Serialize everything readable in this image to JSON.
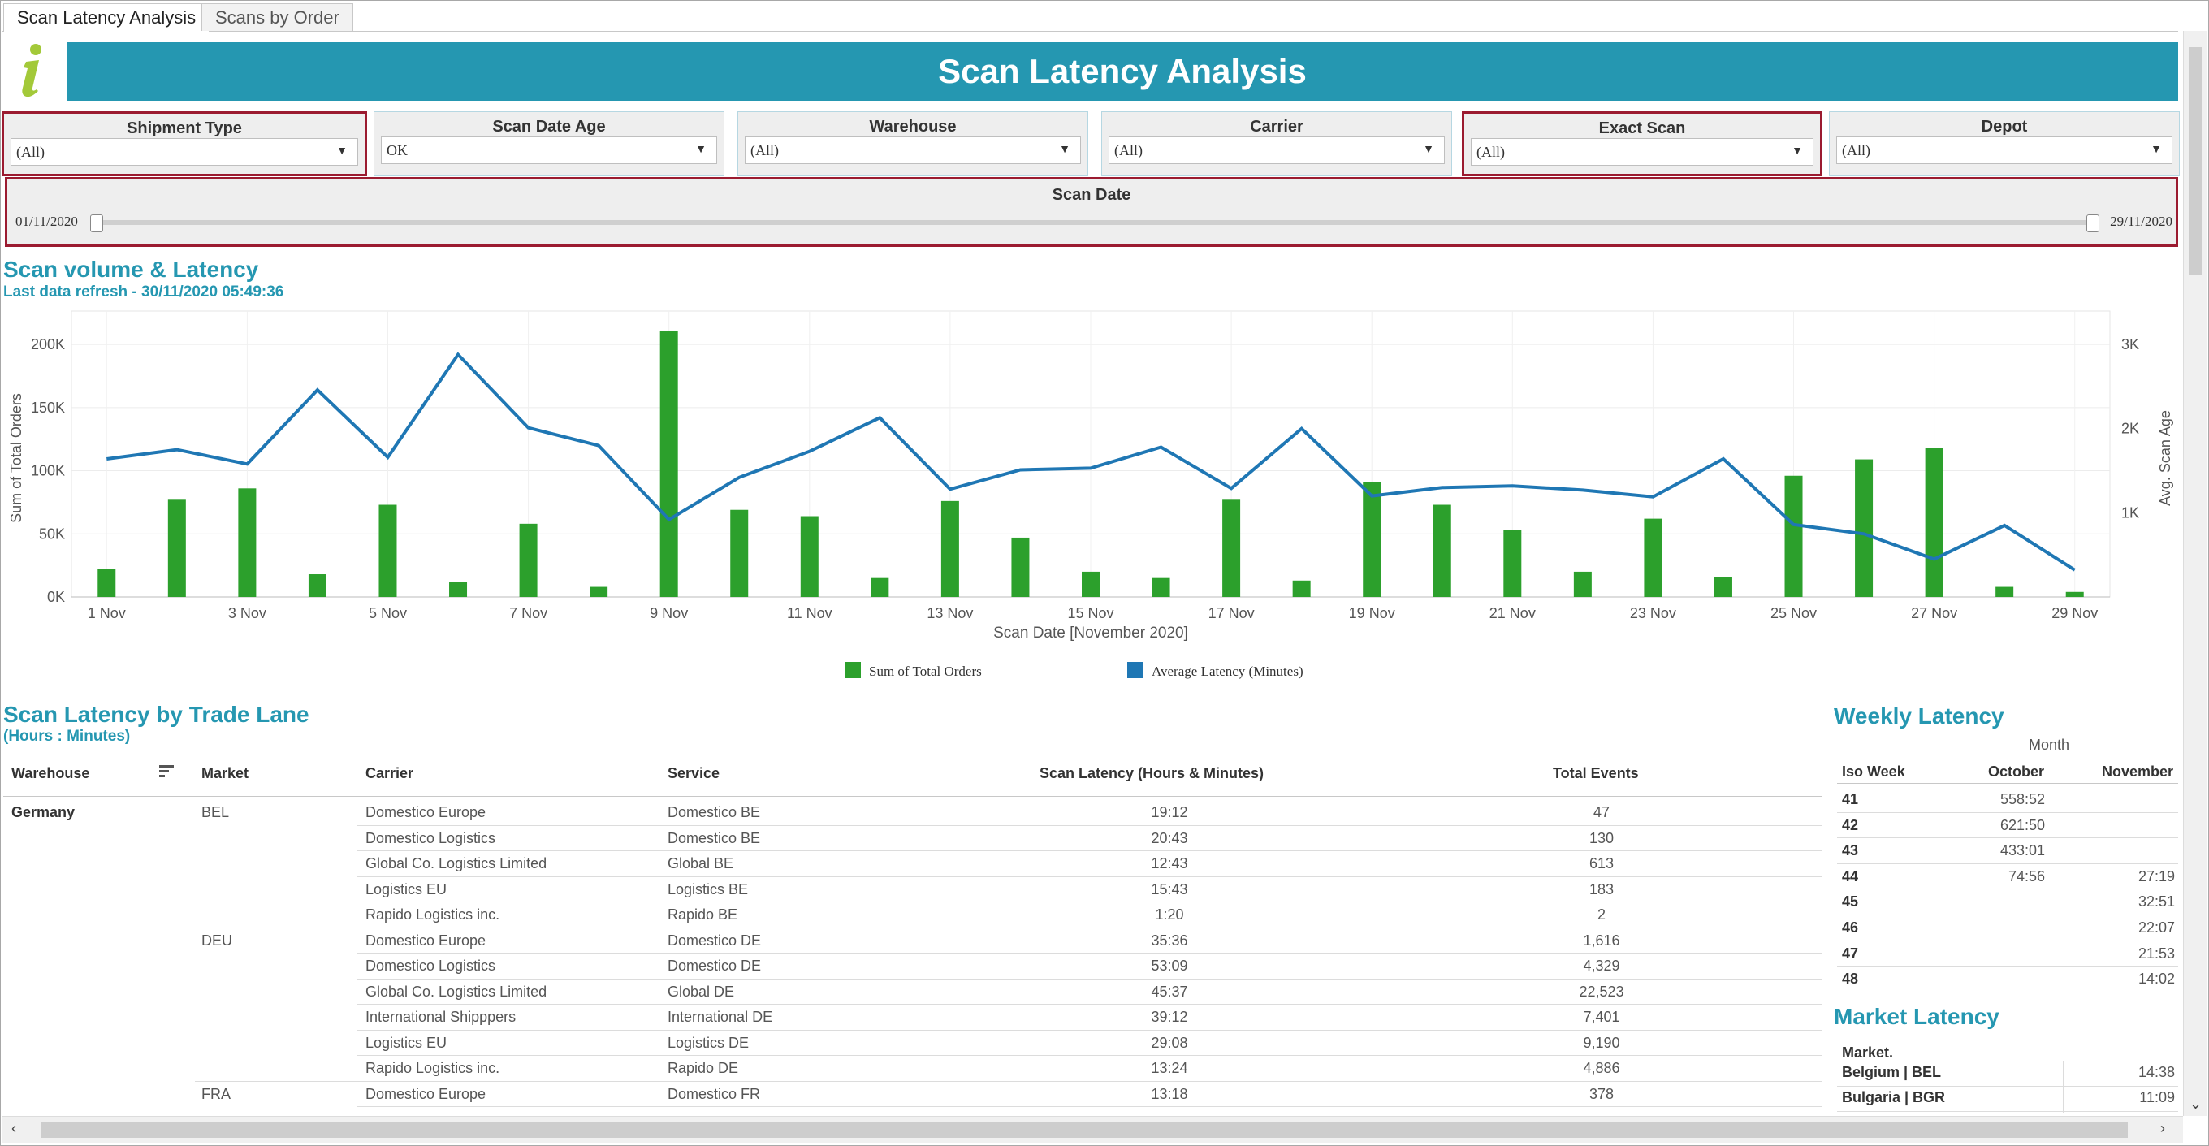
{
  "tabs": [
    {
      "label": "Scan Latency Analysis",
      "active": true
    },
    {
      "label": "Scans by Order",
      "active": false
    }
  ],
  "header": {
    "title": "Scan Latency Analysis",
    "icon": "info-icon",
    "brand_color": "#2597b1",
    "icon_color": "#a3c939"
  },
  "filters": [
    {
      "label": "Shipment Type",
      "value": "(All)",
      "highlighted": true
    },
    {
      "label": "Scan Date Age",
      "value": "OK",
      "highlighted": false
    },
    {
      "label": "Warehouse",
      "value": "(All)",
      "highlighted": false
    },
    {
      "label": "Carrier",
      "value": "(All)",
      "highlighted": false
    },
    {
      "label": "Exact Scan",
      "value": "(All)",
      "highlighted": true
    },
    {
      "label": "Depot",
      "value": "(All)",
      "highlighted": false
    }
  ],
  "scan_date": {
    "label": "Scan Date",
    "start": "01/11/2020",
    "end": "29/11/2020"
  },
  "volume_section": {
    "title": "Scan volume & Latency",
    "subtitle": "Last data refresh - 30/11/2020 05:49:36"
  },
  "chart_data": {
    "type": "bar",
    "title": "",
    "xlabel": "Scan Date [November 2020]",
    "ylabel": "Sum of Total Orders",
    "y2label": "Avg. Scan Age",
    "ylim": [
      0,
      220000
    ],
    "y2lim": [
      0,
      3300
    ],
    "grid": true,
    "legend_position": "bottom",
    "x_tick_labels": [
      "1 Nov",
      "3 Nov",
      "5 Nov",
      "7 Nov",
      "9 Nov",
      "11 Nov",
      "13 Nov",
      "15 Nov",
      "17 Nov",
      "19 Nov",
      "21 Nov",
      "23 Nov",
      "25 Nov",
      "27 Nov",
      "29 Nov"
    ],
    "y_tick_labels": [
      "0K",
      "50K",
      "100K",
      "150K",
      "200K"
    ],
    "y2_tick_labels": [
      "1K",
      "2K",
      "3K"
    ],
    "categories": [
      1,
      2,
      3,
      4,
      5,
      6,
      7,
      8,
      9,
      10,
      11,
      12,
      13,
      14,
      15,
      16,
      17,
      18,
      19,
      20,
      21,
      22,
      23,
      24,
      25,
      26,
      27,
      28,
      29
    ],
    "series": [
      {
        "name": "Sum of Total Orders",
        "type": "bar",
        "axis": "left",
        "color": "#2ca02c",
        "values": [
          22000,
          77000,
          86000,
          18000,
          73000,
          12000,
          58000,
          8000,
          211000,
          69000,
          64000,
          15000,
          76000,
          47000,
          20000,
          15000,
          77000,
          13000,
          91000,
          73000,
          53000,
          20000,
          62000,
          16000,
          96000,
          109000,
          118000,
          8000,
          4000
        ]
      },
      {
        "name": "Average Latency (Minutes)",
        "type": "line",
        "axis": "right",
        "color": "#1f77b4",
        "values": [
          1640,
          1750,
          1580,
          2460,
          1660,
          2880,
          2010,
          1800,
          920,
          1420,
          1730,
          2130,
          1280,
          1510,
          1530,
          1780,
          1290,
          2000,
          1200,
          1300,
          1320,
          1270,
          1190,
          1640,
          860,
          750,
          450,
          850,
          320
        ]
      }
    ]
  },
  "trade_lane": {
    "title": "Scan Latency by Trade Lane",
    "subtitle": "(Hours : Minutes)",
    "headers": [
      "Warehouse",
      "Market",
      "Carrier",
      "Service",
      "Scan Latency (Hours & Minutes)",
      "Total Events"
    ],
    "rows": [
      {
        "warehouse": "Germany",
        "market": "BEL",
        "carrier": "Domestico Europe",
        "service": "Domestico BE",
        "latency": "19:12",
        "events": "47"
      },
      {
        "warehouse": "",
        "market": "",
        "carrier": "Domestico Logistics",
        "service": "Domestico BE",
        "latency": "20:43",
        "events": "130"
      },
      {
        "warehouse": "",
        "market": "",
        "carrier": "Global Co. Logistics Limited",
        "service": "Global BE",
        "latency": "12:43",
        "events": "613"
      },
      {
        "warehouse": "",
        "market": "",
        "carrier": "Logistics EU",
        "service": "Logistics BE",
        "latency": "15:43",
        "events": "183"
      },
      {
        "warehouse": "",
        "market": "",
        "carrier": "Rapido Logistics inc.",
        "service": "Rapido BE",
        "latency": "1:20",
        "events": "2"
      },
      {
        "warehouse": "",
        "market": "DEU",
        "carrier": "Domestico Europe",
        "service": "Domestico DE",
        "latency": "35:36",
        "events": "1,616"
      },
      {
        "warehouse": "",
        "market": "",
        "carrier": "Domestico Logistics",
        "service": "Domestico DE",
        "latency": "53:09",
        "events": "4,329"
      },
      {
        "warehouse": "",
        "market": "",
        "carrier": "Global Co. Logistics Limited",
        "service": "Global DE",
        "latency": "45:37",
        "events": "22,523"
      },
      {
        "warehouse": "",
        "market": "",
        "carrier": "International Shipppers",
        "service": "International DE",
        "latency": "39:12",
        "events": "7,401"
      },
      {
        "warehouse": "",
        "market": "",
        "carrier": "Logistics EU",
        "service": "Logistics DE",
        "latency": "29:08",
        "events": "9,190"
      },
      {
        "warehouse": "",
        "market": "",
        "carrier": "Rapido Logistics inc.",
        "service": "Rapido DE",
        "latency": "13:24",
        "events": "4,886"
      },
      {
        "warehouse": "",
        "market": "FRA",
        "carrier": "Domestico Europe",
        "service": "Domestico FR",
        "latency": "13:18",
        "events": "378"
      }
    ]
  },
  "weekly": {
    "title": "Weekly Latency",
    "month_label": "Month",
    "headers": [
      "Iso Week",
      "October",
      "November"
    ],
    "rows": [
      {
        "week": "41",
        "oct": "558:52",
        "nov": ""
      },
      {
        "week": "42",
        "oct": "621:50",
        "nov": ""
      },
      {
        "week": "43",
        "oct": "433:01",
        "nov": ""
      },
      {
        "week": "44",
        "oct": "74:56",
        "nov": "27:19"
      },
      {
        "week": "45",
        "oct": "",
        "nov": "32:51"
      },
      {
        "week": "46",
        "oct": "",
        "nov": "22:07"
      },
      {
        "week": "47",
        "oct": "",
        "nov": "21:53"
      },
      {
        "week": "48",
        "oct": "",
        "nov": "14:02"
      }
    ]
  },
  "market": {
    "title": "Market Latency",
    "header": "Market.",
    "rows": [
      {
        "name": "Belgium | BEL",
        "value": "14:38"
      },
      {
        "name": "Bulgaria | BGR",
        "value": "11:09"
      }
    ]
  }
}
